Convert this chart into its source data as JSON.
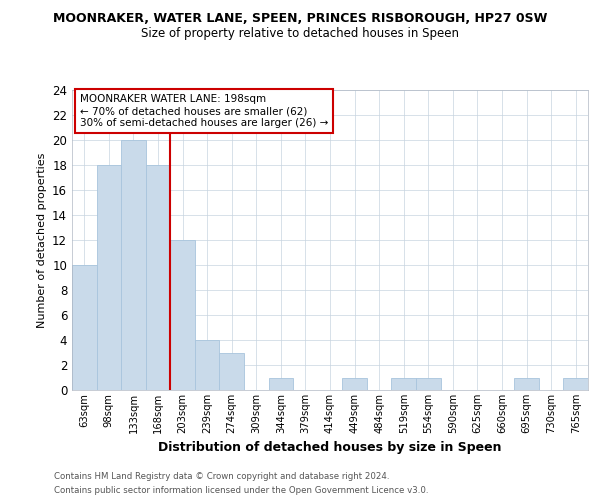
{
  "title1": "MOONRAKER, WATER LANE, SPEEN, PRINCES RISBOROUGH, HP27 0SW",
  "title2": "Size of property relative to detached houses in Speen",
  "xlabel": "Distribution of detached houses by size in Speen",
  "ylabel": "Number of detached properties",
  "categories": [
    "63sqm",
    "98sqm",
    "133sqm",
    "168sqm",
    "203sqm",
    "239sqm",
    "274sqm",
    "309sqm",
    "344sqm",
    "379sqm",
    "414sqm",
    "449sqm",
    "484sqm",
    "519sqm",
    "554sqm",
    "590sqm",
    "625sqm",
    "660sqm",
    "695sqm",
    "730sqm",
    "765sqm"
  ],
  "values": [
    10,
    18,
    20,
    18,
    12,
    4,
    3,
    0,
    1,
    0,
    0,
    1,
    0,
    1,
    1,
    0,
    0,
    0,
    1,
    0,
    1
  ],
  "bar_color": "#c9daea",
  "bar_edge_color": "#a8c4dd",
  "vline_color": "#cc0000",
  "ylim": [
    0,
    24
  ],
  "yticks": [
    0,
    2,
    4,
    6,
    8,
    10,
    12,
    14,
    16,
    18,
    20,
    22,
    24
  ],
  "annotation_title": "MOONRAKER WATER LANE: 198sqm",
  "annotation_line1": "← 70% of detached houses are smaller (62)",
  "annotation_line2": "30% of semi-detached houses are larger (26) →",
  "annotation_box_color": "#ffffff",
  "annotation_box_edge": "#cc0000",
  "footnote1": "Contains HM Land Registry data © Crown copyright and database right 2024.",
  "footnote2": "Contains public sector information licensed under the Open Government Licence v3.0.",
  "bg_color": "#ffffff",
  "grid_color": "#c8d4e0"
}
